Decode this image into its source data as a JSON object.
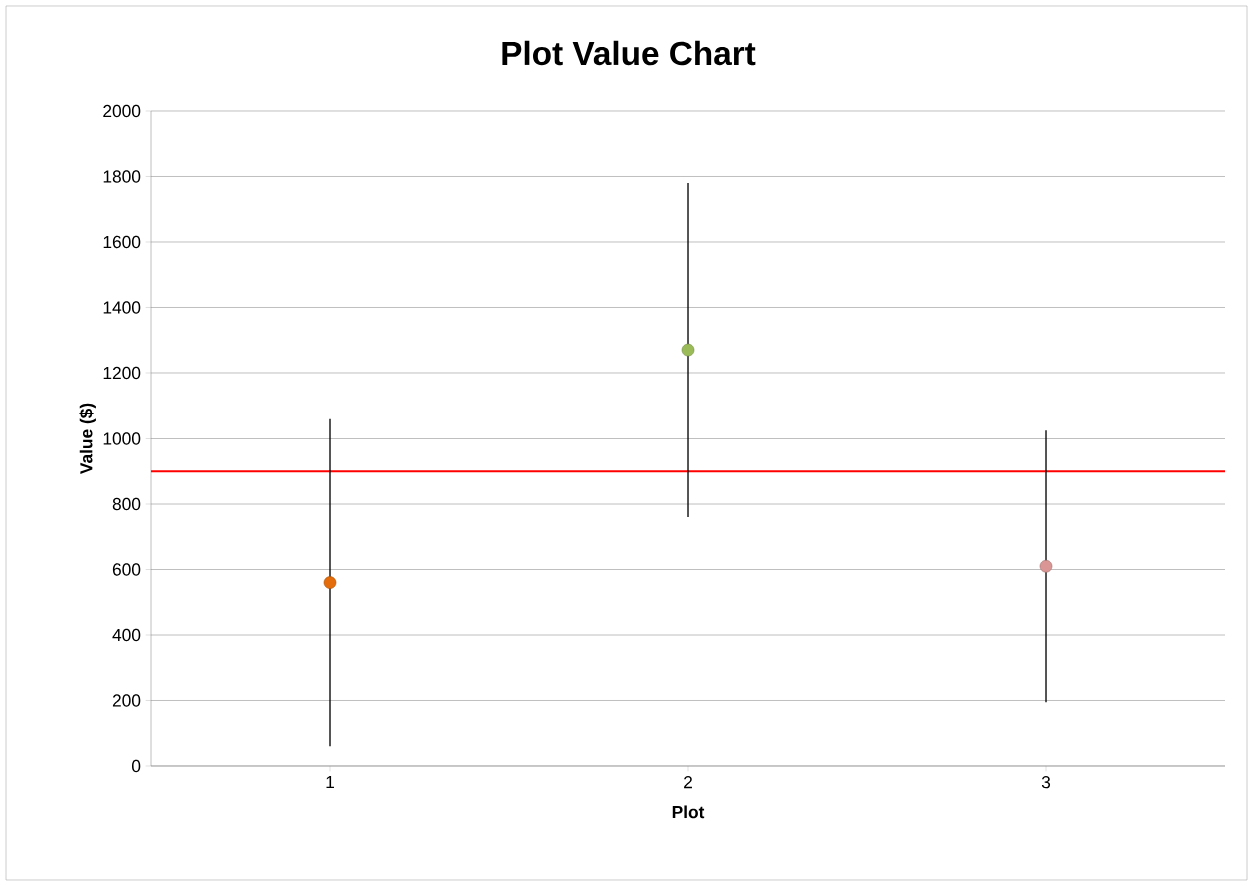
{
  "chart_data": {
    "type": "scatter",
    "title": "Plot Value Chart",
    "xlabel": "Plot",
    "ylabel": "Value ($)",
    "categories": [
      "1",
      "2",
      "3"
    ],
    "values": [
      560,
      1270,
      610
    ],
    "errors": [
      500,
      510,
      415
    ],
    "colors": [
      "#e46c0a",
      "#9bbb59",
      "#d99694"
    ],
    "ylim": [
      0,
      2000
    ],
    "yticks": [
      0,
      200,
      400,
      600,
      800,
      1000,
      1200,
      1400,
      1600,
      1800,
      2000
    ],
    "ref_lines": [
      {
        "axis": "y",
        "value": 900,
        "color": "#ff0000"
      }
    ],
    "grid": "y",
    "marker": "circle"
  }
}
